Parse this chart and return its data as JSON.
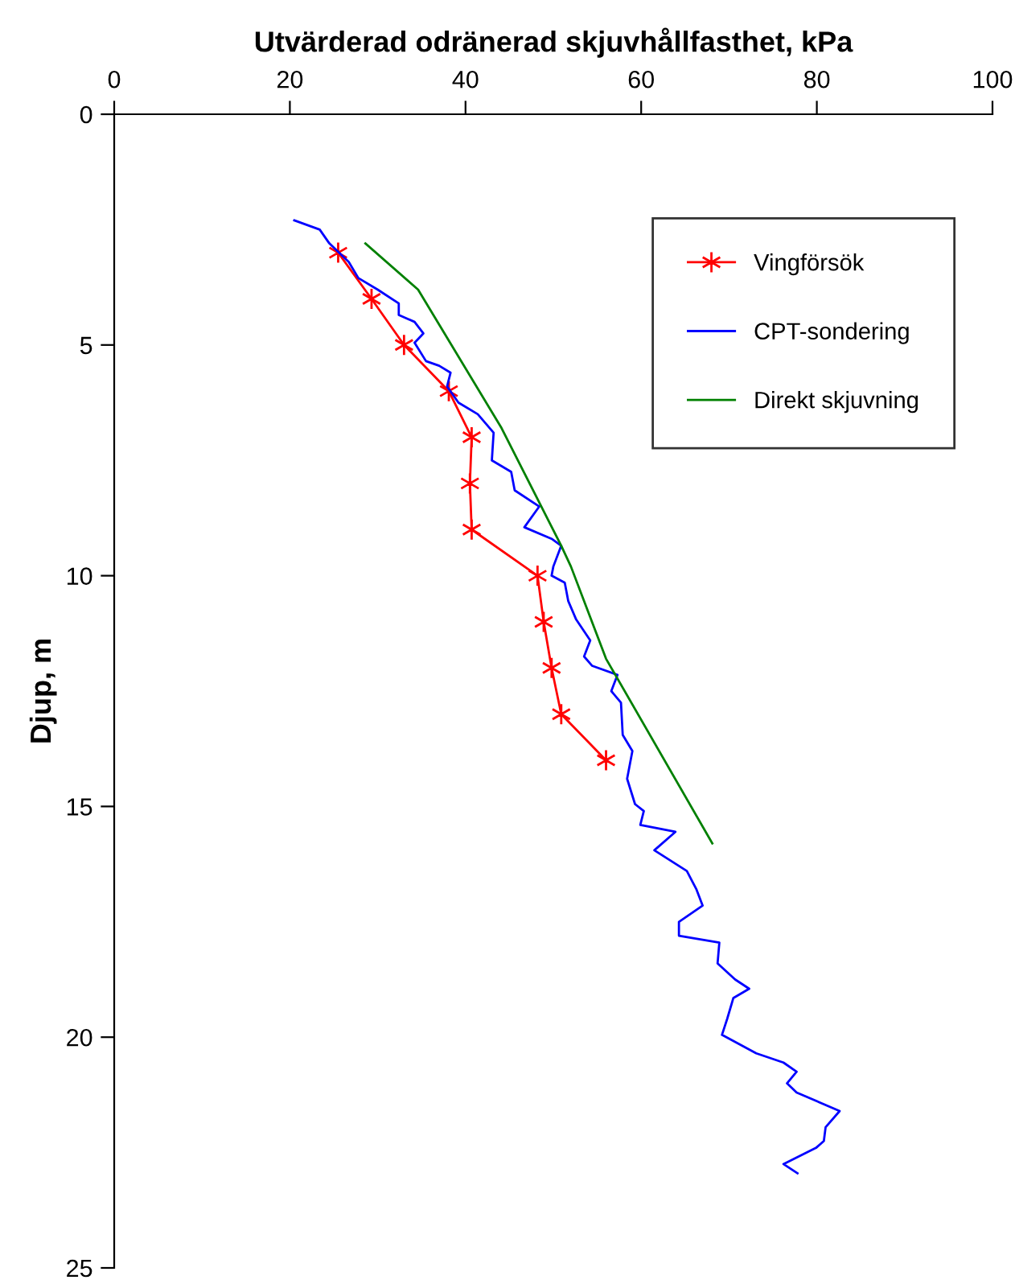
{
  "chart_data": {
    "type": "line",
    "title": "Utvärderad odränerad skjuvhållfasthet, kPa",
    "ylabel": "Djup, m",
    "xlim": [
      0,
      100
    ],
    "xticks": [
      0,
      20,
      40,
      60,
      80,
      100
    ],
    "ylim": [
      25,
      0
    ],
    "yticks": [
      0,
      5,
      10,
      15,
      20,
      25
    ],
    "grid": false,
    "legend": "top right",
    "line_style": "solid",
    "series": [
      {
        "name": "Vingförsök",
        "color": "#ff0000",
        "marker": "cross",
        "x": [
          25.5,
          29.3,
          33,
          38.1,
          40.7,
          40.5,
          40.7,
          48.2,
          48.9,
          49.8,
          50.9,
          56.0
        ],
        "values": [
          3,
          4,
          5,
          6,
          7,
          8,
          9,
          10,
          11,
          12,
          13,
          14
        ]
      },
      {
        "name": "CPT-sondering",
        "color": "#0000ff",
        "marker": "none",
        "x": [
          20.5,
          23.4,
          24.5,
          25.6,
          26.7,
          27.8,
          30,
          32.4,
          32.4,
          34.2,
          35.2,
          34.2,
          35.5,
          37,
          38.3,
          37.9,
          39.2,
          41.4,
          43.2,
          43,
          45.2,
          45.6,
          48.4,
          46.7,
          49.8,
          50.9,
          50,
          49.8,
          51.3,
          51.7,
          52.6,
          54.2,
          53.5,
          54.4,
          57.3,
          56.6,
          57.7,
          57.9,
          59,
          58.4,
          59.3,
          60.3,
          59.9,
          63.9,
          61.5,
          65.2,
          66.3,
          67,
          64.3,
          64.3,
          68.9,
          68.7,
          70.7,
          72.3,
          70.5,
          69.8,
          69.2,
          73.1,
          76.2,
          77.7,
          76.6,
          77.7,
          82.6,
          81,
          80.8,
          79.9,
          76.2,
          77.8
        ],
        "values": [
          2.3,
          2.5,
          2.8,
          3.0,
          3.2,
          3.55,
          3.8,
          4.1,
          4.35,
          4.5,
          4.75,
          4.95,
          5.35,
          5.45,
          5.6,
          5.9,
          6.25,
          6.5,
          6.9,
          7.5,
          7.75,
          8.15,
          8.5,
          8.95,
          9.2,
          9.35,
          9.8,
          10.0,
          10.15,
          10.55,
          10.95,
          11.4,
          11.75,
          11.95,
          12.15,
          12.5,
          12.75,
          13.45,
          13.8,
          14.4,
          14.95,
          15.1,
          15.4,
          15.55,
          15.95,
          16.4,
          16.8,
          17.15,
          17.5,
          17.8,
          17.95,
          18.4,
          18.75,
          18.95,
          19.15,
          19.6,
          19.95,
          20.35,
          20.55,
          20.75,
          21.0,
          21.2,
          21.6,
          21.95,
          22.25,
          22.4,
          22.75,
          22.95
        ]
      },
      {
        "name": "Direkt skjuvning",
        "color": "#008000",
        "marker": "none",
        "x": [
          28.6,
          34.6,
          44.1,
          50.9,
          52,
          56,
          68.1
        ],
        "values": [
          2.8,
          3.8,
          6.8,
          9.35,
          9.8,
          11.8,
          15.8
        ]
      }
    ]
  }
}
